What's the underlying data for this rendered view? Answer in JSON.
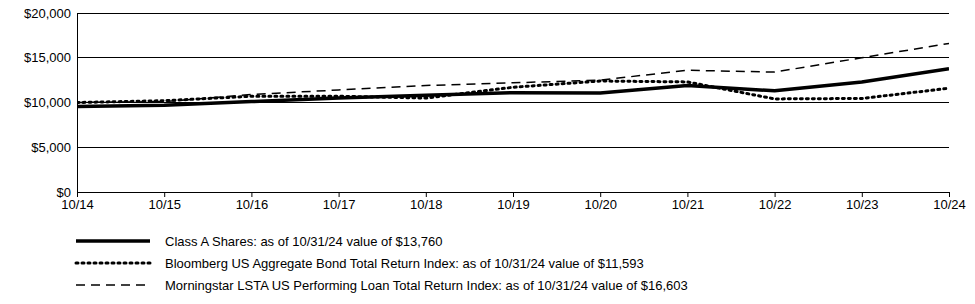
{
  "chart_data": {
    "type": "line",
    "x": [
      "10/14",
      "10/15",
      "10/16",
      "10/17",
      "10/18",
      "10/19",
      "10/20",
      "10/21",
      "10/22",
      "10/23",
      "10/24"
    ],
    "series": [
      {
        "name": "Class A Shares: as of 10/31/24 value of $13,760",
        "color": "#000000",
        "line_style": "solid",
        "values": [
          9550,
          9700,
          10100,
          10500,
          10800,
          11100,
          11050,
          11900,
          11300,
          12300,
          13760
        ]
      },
      {
        "name": "Bloomberg US Aggregate Bond Total Return Index: as of 10/31/24 value of $11,593",
        "color": "#000000",
        "line_style": "dotted",
        "values": [
          10000,
          10200,
          10700,
          10700,
          10500,
          11700,
          12400,
          12300,
          10400,
          10450,
          11593
        ]
      },
      {
        "name": "Morningstar LSTA US Performing Loan Total Return Index: as of 10/31/24 value of $16,603",
        "color": "#000000",
        "line_style": "dashed",
        "values": [
          10000,
          10100,
          10900,
          11400,
          11900,
          12200,
          12500,
          13600,
          13400,
          15000,
          16603
        ]
      }
    ],
    "ylim": [
      0,
      20000
    ],
    "yticks": [
      {
        "value": 0,
        "label": "$0"
      },
      {
        "value": 5000,
        "label": "$5,000"
      },
      {
        "value": 10000,
        "label": "$10,000"
      },
      {
        "value": 15000,
        "label": "$15,000"
      },
      {
        "value": 20000,
        "label": "$20,000"
      }
    ],
    "grid": true
  }
}
